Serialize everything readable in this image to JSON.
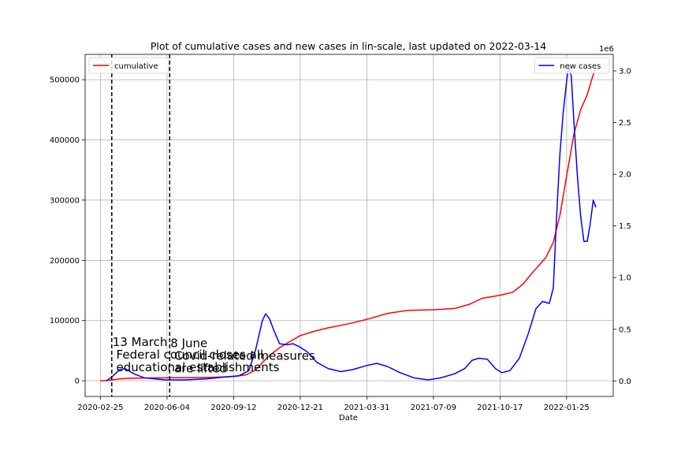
{
  "chart_data": {
    "type": "line",
    "title": "Plot of cumulative cases and new cases in lin-scale, last updated on 2022-03-14",
    "xlabel": "Date",
    "x_ticks": [
      "2020-02-25",
      "2020-06-04",
      "2020-09-12",
      "2020-12-21",
      "2021-03-31",
      "2021-07-09",
      "2021-10-17",
      "2022-01-25"
    ],
    "xlim": [
      "2020-02-02",
      "2022-04-05"
    ],
    "grid": true,
    "left_axis": {
      "ylim": [
        -26000,
        542000
      ],
      "ticks": [
        "0",
        "100000",
        "200000",
        "300000",
        "400000",
        "500000"
      ]
    },
    "right_axis": {
      "ylim": [
        -0.15,
        3.16
      ],
      "ticks": [
        "0.0",
        "0.5",
        "1.0",
        "1.5",
        "2.0",
        "2.5",
        "3.0"
      ],
      "offset_label": "1e6"
    },
    "legend_left": {
      "label": "cumulative",
      "color": "#ff0000",
      "placement": "upper-left"
    },
    "legend_right": {
      "label": "new cases",
      "color": "#0000ff",
      "placement": "upper-right"
    },
    "annotations": [
      {
        "date": "2020-03-13",
        "lines": [
          "13 March",
          " Federal council closes all",
          " educational establishments"
        ],
        "y": 58000
      },
      {
        "date": "2020-06-08",
        "lines": [
          "8 June",
          " Covid-related measures",
          " are lifted"
        ],
        "y": 56000
      }
    ],
    "series": [
      {
        "name": "cumulative",
        "axis": "left",
        "color": "#ff0000",
        "points": [
          [
            "2020-02-25",
            0
          ],
          [
            "2020-03-10",
            1000
          ],
          [
            "2020-03-25",
            3000
          ],
          [
            "2020-04-10",
            4200
          ],
          [
            "2020-05-10",
            4800
          ],
          [
            "2020-06-10",
            5000
          ],
          [
            "2020-07-10",
            5300
          ],
          [
            "2020-08-10",
            5700
          ],
          [
            "2020-09-12",
            7000
          ],
          [
            "2020-10-01",
            10000
          ],
          [
            "2020-10-15",
            18000
          ],
          [
            "2020-10-25",
            30000
          ],
          [
            "2020-11-05",
            42000
          ],
          [
            "2020-11-20",
            55000
          ],
          [
            "2020-12-05",
            65000
          ],
          [
            "2020-12-21",
            75000
          ],
          [
            "2021-01-10",
            82000
          ],
          [
            "2021-02-01",
            88000
          ],
          [
            "2021-03-01",
            94000
          ],
          [
            "2021-03-31",
            102000
          ],
          [
            "2021-05-01",
            112000
          ],
          [
            "2021-06-01",
            117000
          ],
          [
            "2021-07-09",
            118000
          ],
          [
            "2021-08-10",
            120000
          ],
          [
            "2021-09-01",
            127000
          ],
          [
            "2021-09-20",
            137000
          ],
          [
            "2021-10-17",
            142000
          ],
          [
            "2021-11-05",
            147000
          ],
          [
            "2021-11-20",
            160000
          ],
          [
            "2021-12-05",
            180000
          ],
          [
            "2021-12-25",
            205000
          ],
          [
            "2022-01-05",
            230000
          ],
          [
            "2022-01-15",
            275000
          ],
          [
            "2022-01-25",
            340000
          ],
          [
            "2022-02-05",
            410000
          ],
          [
            "2022-02-15",
            450000
          ],
          [
            "2022-02-25",
            475000
          ],
          [
            "2022-03-05",
            505000
          ],
          [
            "2022-03-10",
            520000
          ]
        ]
      },
      {
        "name": "new cases",
        "axis": "right",
        "color": "#0000ff",
        "points": [
          [
            "2020-03-05",
            0.0
          ],
          [
            "2020-03-15",
            0.05
          ],
          [
            "2020-03-25",
            0.11
          ],
          [
            "2020-04-02",
            0.12
          ],
          [
            "2020-04-15",
            0.07
          ],
          [
            "2020-05-01",
            0.03
          ],
          [
            "2020-06-01",
            0.01
          ],
          [
            "2020-07-01",
            0.01
          ],
          [
            "2020-08-01",
            0.02
          ],
          [
            "2020-09-01",
            0.04
          ],
          [
            "2020-09-20",
            0.05
          ],
          [
            "2020-10-05",
            0.1
          ],
          [
            "2020-10-15",
            0.3
          ],
          [
            "2020-10-25",
            0.58
          ],
          [
            "2020-10-30",
            0.65
          ],
          [
            "2020-11-05",
            0.6
          ],
          [
            "2020-11-12",
            0.48
          ],
          [
            "2020-11-20",
            0.36
          ],
          [
            "2020-12-01",
            0.35
          ],
          [
            "2020-12-10",
            0.36
          ],
          [
            "2020-12-20",
            0.33
          ],
          [
            "2021-01-01",
            0.28
          ],
          [
            "2021-01-15",
            0.18
          ],
          [
            "2021-02-01",
            0.12
          ],
          [
            "2021-02-20",
            0.09
          ],
          [
            "2021-03-10",
            0.11
          ],
          [
            "2021-03-31",
            0.15
          ],
          [
            "2021-04-15",
            0.17
          ],
          [
            "2021-05-01",
            0.14
          ],
          [
            "2021-05-20",
            0.08
          ],
          [
            "2021-06-10",
            0.03
          ],
          [
            "2021-07-01",
            0.01
          ],
          [
            "2021-07-20",
            0.03
          ],
          [
            "2021-08-10",
            0.07
          ],
          [
            "2021-08-25",
            0.12
          ],
          [
            "2021-09-05",
            0.2
          ],
          [
            "2021-09-15",
            0.22
          ],
          [
            "2021-09-28",
            0.21
          ],
          [
            "2021-10-10",
            0.12
          ],
          [
            "2021-10-20",
            0.08
          ],
          [
            "2021-11-01",
            0.1
          ],
          [
            "2021-11-15",
            0.22
          ],
          [
            "2021-11-28",
            0.45
          ],
          [
            "2021-12-10",
            0.7
          ],
          [
            "2021-12-20",
            0.77
          ],
          [
            "2021-12-30",
            0.75
          ],
          [
            "2022-01-05",
            0.9
          ],
          [
            "2022-01-10",
            1.6
          ],
          [
            "2022-01-15",
            2.2
          ],
          [
            "2022-01-20",
            2.6
          ],
          [
            "2022-01-25",
            2.9
          ],
          [
            "2022-01-28",
            3.05
          ],
          [
            "2022-02-01",
            2.95
          ],
          [
            "2022-02-05",
            2.5
          ],
          [
            "2022-02-10",
            2.0
          ],
          [
            "2022-02-15",
            1.6
          ],
          [
            "2022-02-20",
            1.35
          ],
          [
            "2022-02-25",
            1.35
          ],
          [
            "2022-03-01",
            1.5
          ],
          [
            "2022-03-06",
            1.75
          ],
          [
            "2022-03-10",
            1.68
          ]
        ]
      }
    ]
  }
}
